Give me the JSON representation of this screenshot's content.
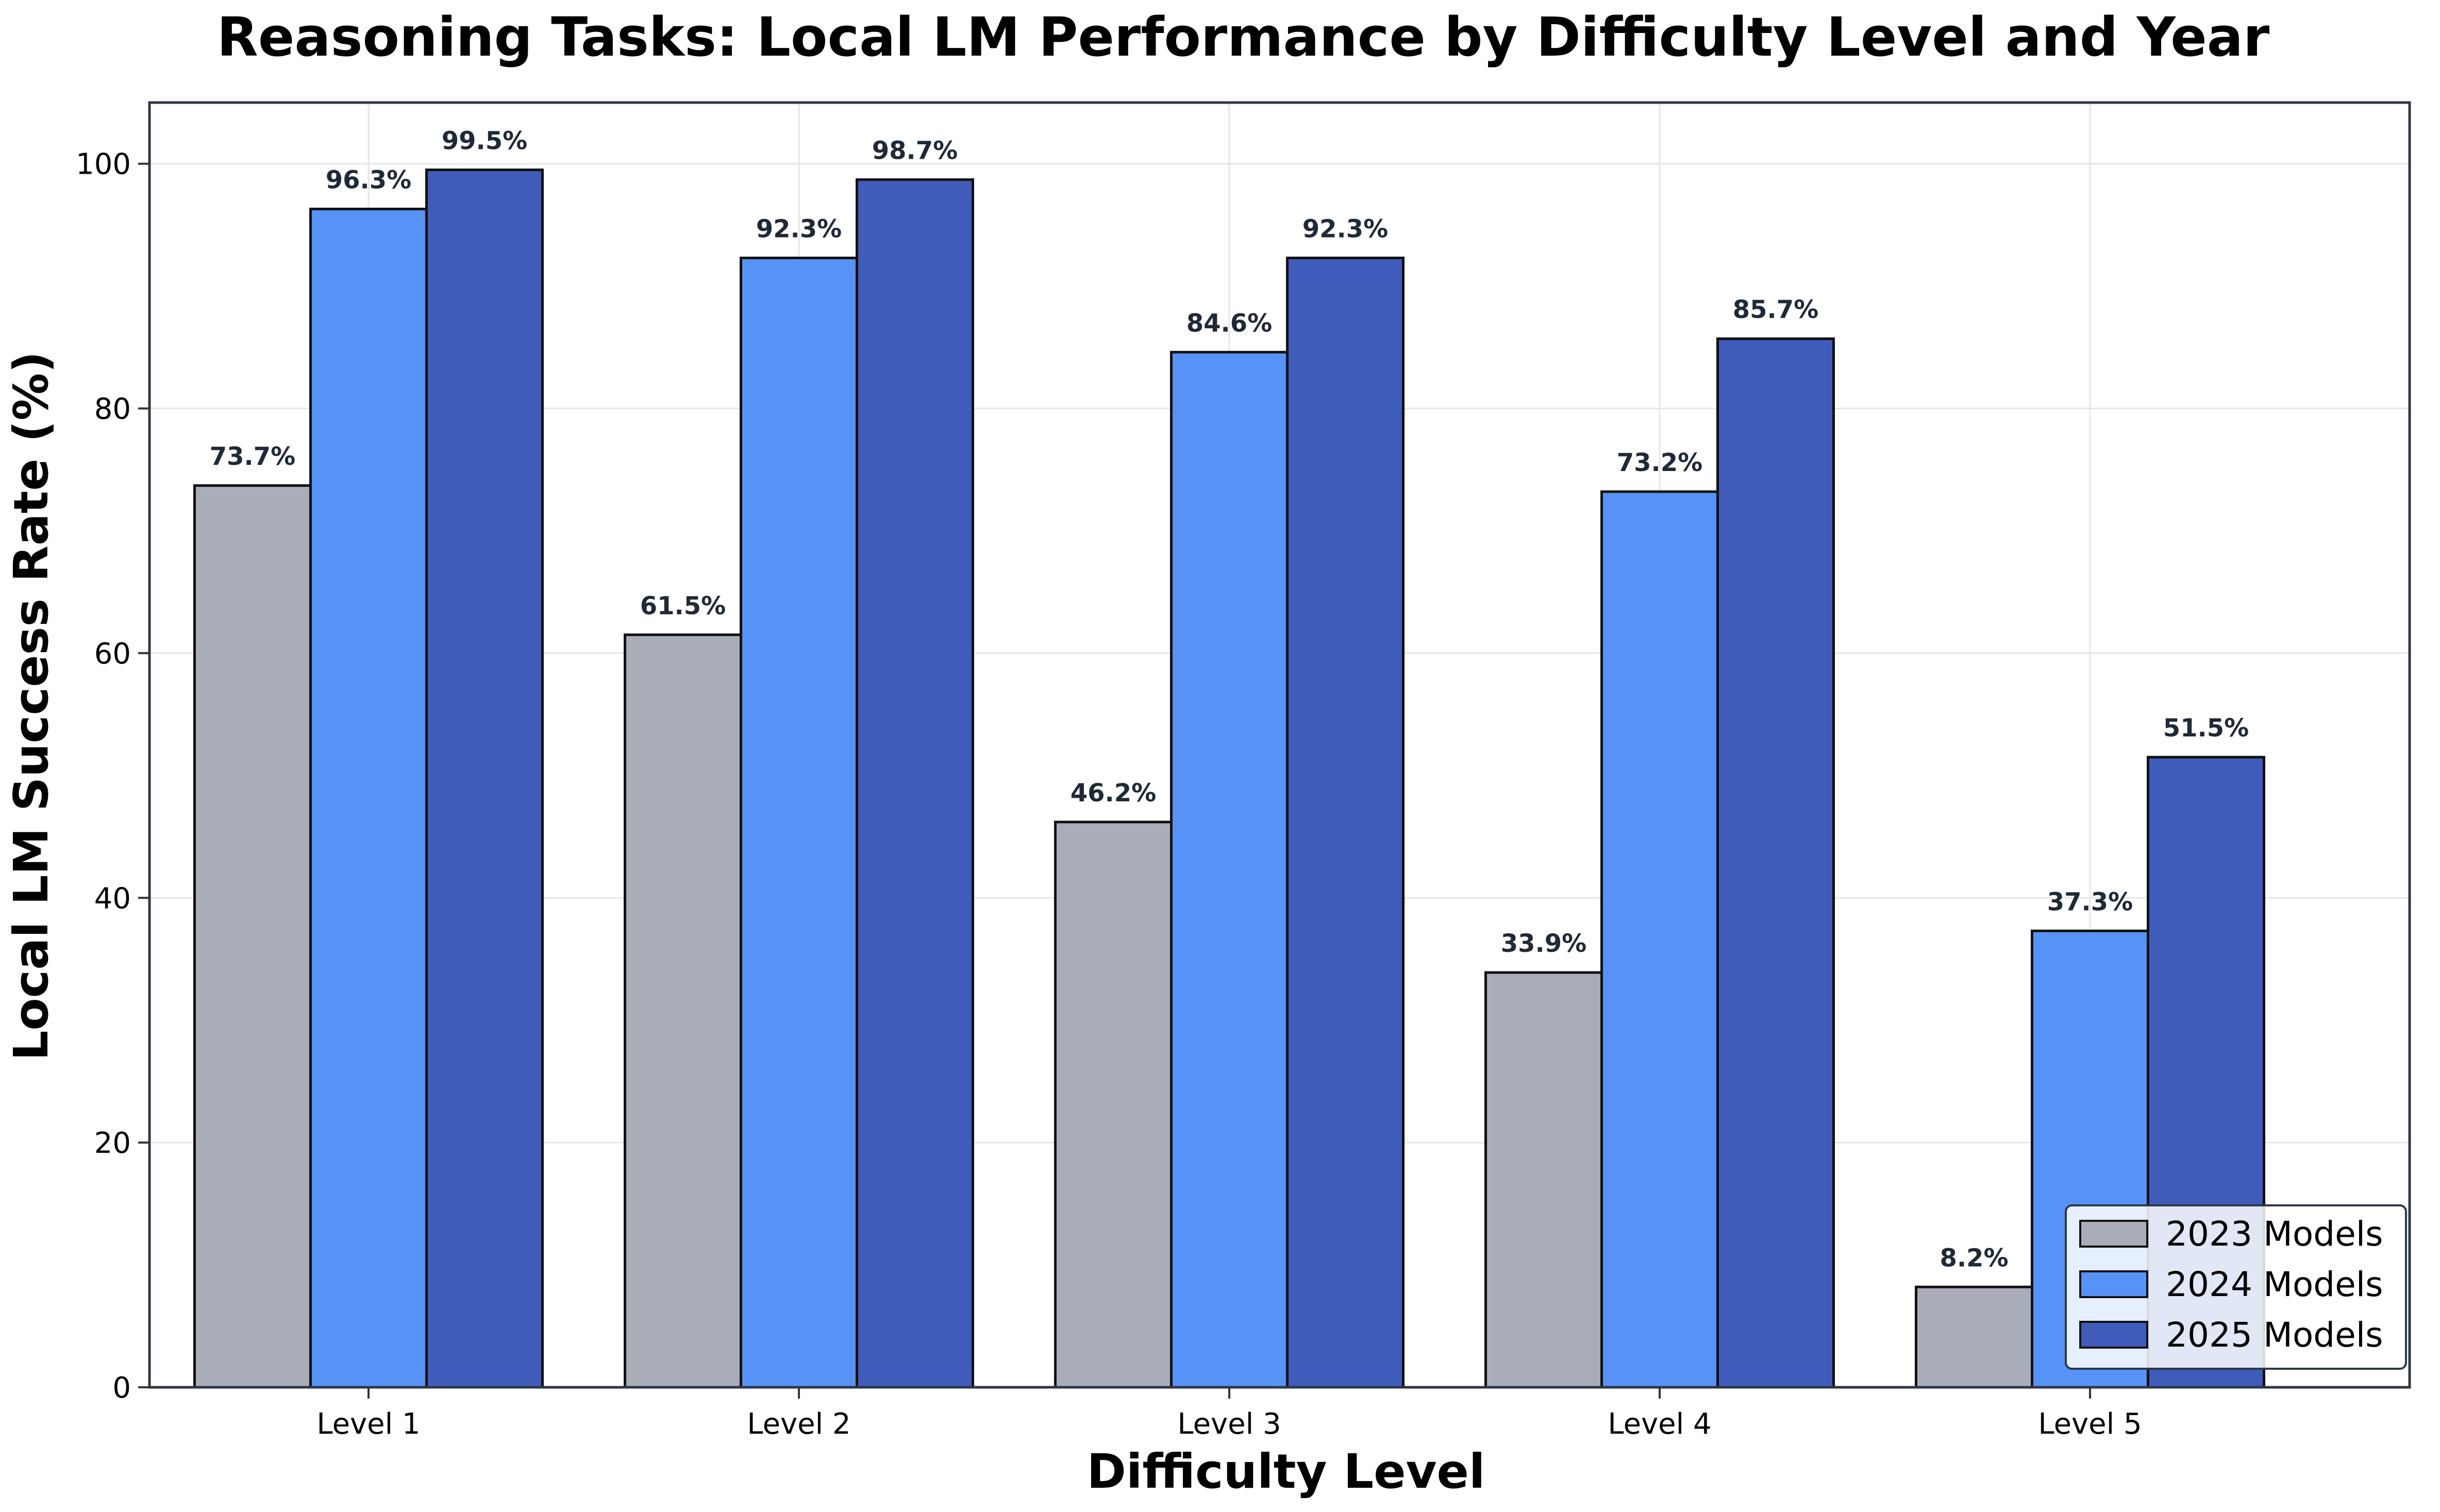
{
  "chart_data": {
    "type": "bar",
    "title": "Reasoning Tasks: Local LM Performance by Difficulty Level and Year",
    "xlabel": "Difficulty Level",
    "ylabel": "Local LM Success Rate (%)",
    "ylim": [
      0,
      105
    ],
    "yticks": [
      0,
      20,
      40,
      60,
      80,
      100
    ],
    "grid": true,
    "legend_position": "bottom-right",
    "categories": [
      "Level 1",
      "Level 2",
      "Level 3",
      "Level 4",
      "Level 5"
    ],
    "series": [
      {
        "name": "2023 Models",
        "color": "#a9adb8",
        "values": [
          73.7,
          61.5,
          46.2,
          33.9,
          8.2
        ]
      },
      {
        "name": "2024 Models",
        "color": "#5793f6",
        "values": [
          96.3,
          92.3,
          84.6,
          73.2,
          37.3
        ]
      },
      {
        "name": "2025 Models",
        "color": "#3f5cba",
        "values": [
          99.5,
          98.7,
          92.3,
          85.7,
          51.5
        ]
      }
    ],
    "value_suffix": "%"
  }
}
